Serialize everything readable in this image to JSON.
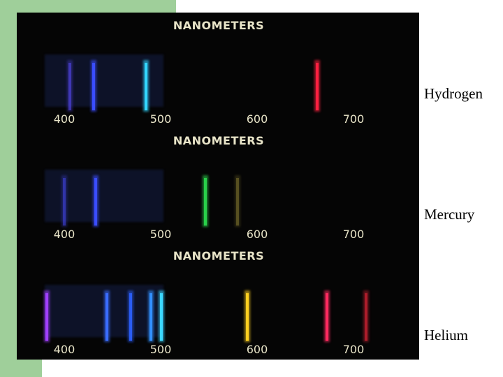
{
  "panels": [
    {
      "title": "NANOMETERS",
      "scale": [
        400,
        500,
        600,
        700
      ],
      "element": "Hydrogen"
    },
    {
      "title": "NANOMETERS",
      "scale": [
        400,
        500,
        600,
        700
      ],
      "element": "Mercury"
    },
    {
      "title": "NANOMETERS",
      "scale": [
        400,
        500,
        600,
        700
      ],
      "element": "Helium"
    }
  ]
}
